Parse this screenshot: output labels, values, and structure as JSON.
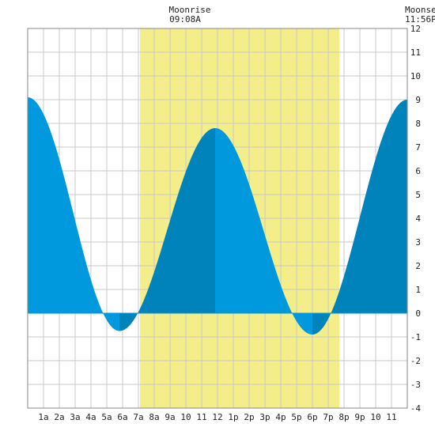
{
  "moon": {
    "rise_label": "Moonrise",
    "rise_time": "09:08A",
    "set_label": "Moonset",
    "set_time": "11:56P"
  },
  "chart_data": {
    "type": "area",
    "title": "",
    "xlabel": "",
    "ylabel": "",
    "x_unit": "hour of day",
    "xlim": [
      0,
      24
    ],
    "ylim": [
      -4,
      12
    ],
    "grid": true,
    "x_ticks": [
      {
        "x": 1,
        "label": "1a"
      },
      {
        "x": 2,
        "label": "2a"
      },
      {
        "x": 3,
        "label": "3a"
      },
      {
        "x": 4,
        "label": "4a"
      },
      {
        "x": 5,
        "label": "5a"
      },
      {
        "x": 6,
        "label": "6a"
      },
      {
        "x": 7,
        "label": "7a"
      },
      {
        "x": 8,
        "label": "8a"
      },
      {
        "x": 9,
        "label": "9a"
      },
      {
        "x": 10,
        "label": "10"
      },
      {
        "x": 11,
        "label": "11"
      },
      {
        "x": 12,
        "label": "12"
      },
      {
        "x": 13,
        "label": "1p"
      },
      {
        "x": 14,
        "label": "2p"
      },
      {
        "x": 15,
        "label": "3p"
      },
      {
        "x": 16,
        "label": "4p"
      },
      {
        "x": 17,
        "label": "5p"
      },
      {
        "x": 18,
        "label": "6p"
      },
      {
        "x": 19,
        "label": "7p"
      },
      {
        "x": 20,
        "label": "8p"
      },
      {
        "x": 21,
        "label": "9p"
      },
      {
        "x": 22,
        "label": "10"
      },
      {
        "x": 23,
        "label": "11"
      }
    ],
    "y_ticks": [
      -4,
      -3,
      -2,
      -1,
      0,
      1,
      2,
      3,
      4,
      5,
      6,
      7,
      8,
      9,
      10,
      11,
      12
    ],
    "daylight": {
      "start": 7.1,
      "end": 19.7,
      "color": "#f3ee8a"
    },
    "tide_extremes": [
      {
        "x": 0.0,
        "y": 9.1,
        "type": "high"
      },
      {
        "x": 5.8,
        "y": -0.75,
        "type": "low"
      },
      {
        "x": 11.85,
        "y": 7.8,
        "type": "high"
      },
      {
        "x": 18.0,
        "y": -0.9,
        "type": "low"
      },
      {
        "x": 24.0,
        "y": 9.0,
        "type": "high"
      }
    ],
    "colors": {
      "falling": "#0099dd",
      "rising": "#0082bb",
      "grid": "#c8c8c8",
      "border": "#888888",
      "background": "#ffffff"
    }
  }
}
